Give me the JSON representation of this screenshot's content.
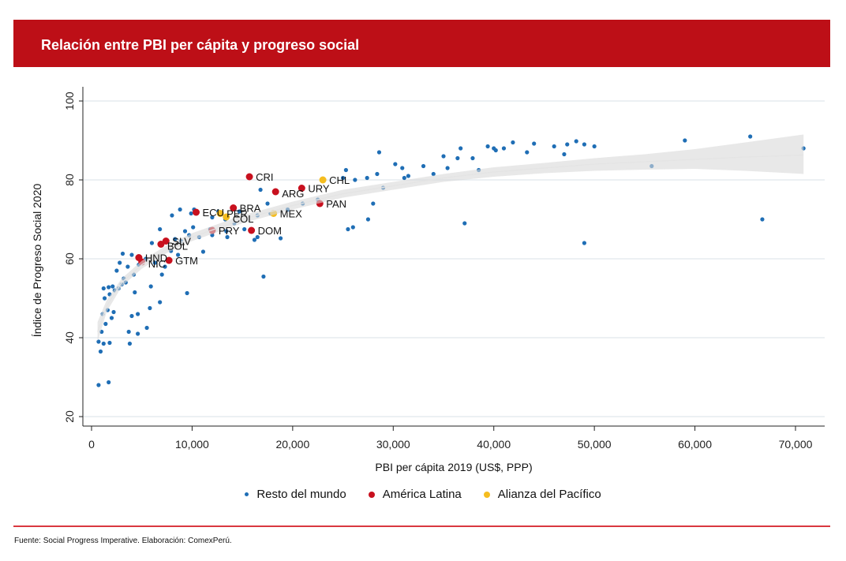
{
  "header": {
    "title": "Relación entre PBI per cápita y progreso social"
  },
  "footer": {
    "source": "Fuente: Social Progress Imperative. Elaboración: ComexPerú."
  },
  "colors": {
    "banner": "#bd0f17",
    "resto": "#1f6eb5",
    "latam": "#c8101e",
    "alianza": "#f5bd1f",
    "band": "#dcdcdc",
    "footer_line": "#d9383f"
  },
  "legend": [
    {
      "label": "Resto del mundo",
      "color": "#1f6eb5"
    },
    {
      "label": "América Latina",
      "color": "#c8101e"
    },
    {
      "label": "Alianza del Pacífico",
      "color": "#f5bd1f"
    }
  ],
  "chart_data": {
    "type": "scatter",
    "title": "Relación entre PBI per cápita y progreso social",
    "xlabel": "PBI per cápita 2019 (US$, PPP)",
    "ylabel": "Índice de Progreso Social 2020",
    "xlim": [
      -500,
      73000
    ],
    "ylim": [
      18,
      102
    ],
    "xticks": [
      0,
      10000,
      20000,
      30000,
      40000,
      50000,
      60000,
      70000
    ],
    "xtick_labels": [
      "0",
      "10,000",
      "20,000",
      "30,000",
      "40,000",
      "50,000",
      "60,000",
      "70,000"
    ],
    "yticks": [
      20,
      40,
      60,
      80,
      100
    ],
    "ytick_labels": [
      "20",
      "40",
      "60",
      "80",
      "100"
    ],
    "grid": true,
    "legend_position": "bottom",
    "fit": {
      "type": "log-fit with confidence band",
      "x": [
        600,
        1500,
        3000,
        5000,
        7500,
        10000,
        15000,
        20000,
        25000,
        30000,
        35000,
        40000,
        45000,
        50000,
        55000,
        60000,
        65000,
        70800
      ],
      "y": [
        41.5,
        48,
        54,
        58.5,
        62.5,
        65.5,
        70,
        73.5,
        76.5,
        78.5,
        80.5,
        82,
        83,
        84,
        84.6,
        85.2,
        85.8,
        86.3
      ],
      "lo": [
        39,
        46.5,
        53,
        57.5,
        61.5,
        64.5,
        69,
        72.5,
        75.5,
        77.5,
        79.5,
        80.8,
        81.7,
        82.3,
        82.6,
        82.8,
        82.3,
        81.5
      ],
      "hi": [
        44,
        49.5,
        55,
        59.5,
        63.5,
        66.5,
        71,
        74.5,
        77.5,
        79.5,
        81.5,
        83.2,
        84.3,
        85.5,
        86.5,
        87.8,
        89.5,
        91.5
      ]
    },
    "series": [
      {
        "name": "Resto del mundo",
        "color": "#1f6eb5",
        "points": [
          [
            700,
            28
          ],
          [
            1700,
            28.7
          ],
          [
            900,
            36.5
          ],
          [
            700,
            39
          ],
          [
            1200,
            38.5
          ],
          [
            1800,
            38.7
          ],
          [
            3800,
            38.5
          ],
          [
            3700,
            41.5
          ],
          [
            4600,
            41
          ],
          [
            5500,
            42.5
          ],
          [
            1000,
            41.5
          ],
          [
            1400,
            43.5
          ],
          [
            2000,
            45
          ],
          [
            1100,
            46
          ],
          [
            1600,
            47
          ],
          [
            2200,
            46.5
          ],
          [
            4000,
            45.5
          ],
          [
            4600,
            46
          ],
          [
            5800,
            47.5
          ],
          [
            6800,
            49
          ],
          [
            1300,
            50
          ],
          [
            1800,
            51
          ],
          [
            2300,
            52
          ],
          [
            2700,
            52.5
          ],
          [
            3000,
            53.5
          ],
          [
            3400,
            54
          ],
          [
            1200,
            52.5
          ],
          [
            1700,
            52.8
          ],
          [
            2100,
            53
          ],
          [
            4300,
            51.5
          ],
          [
            5900,
            53
          ],
          [
            9500,
            51.3
          ],
          [
            3200,
            55
          ],
          [
            2500,
            57
          ],
          [
            3600,
            58
          ],
          [
            4200,
            56
          ],
          [
            7000,
            56
          ],
          [
            7300,
            58
          ],
          [
            2800,
            59
          ],
          [
            3100,
            61.3
          ],
          [
            4000,
            61
          ],
          [
            5400,
            60
          ],
          [
            6300,
            59
          ],
          [
            4700,
            58.5
          ],
          [
            7900,
            62
          ],
          [
            8600,
            61
          ],
          [
            11100,
            61.8
          ],
          [
            6000,
            64
          ],
          [
            8300,
            65
          ],
          [
            8900,
            64.5
          ],
          [
            9700,
            66
          ],
          [
            10700,
            65.5
          ],
          [
            12000,
            66
          ],
          [
            13500,
            65.5
          ],
          [
            16500,
            65.5
          ],
          [
            16200,
            64.8
          ],
          [
            18800,
            65.2
          ],
          [
            11800,
            67.5
          ],
          [
            13400,
            67
          ],
          [
            15200,
            67.5
          ],
          [
            6800,
            67.5
          ],
          [
            9300,
            67
          ],
          [
            10100,
            68
          ],
          [
            14200,
            69
          ],
          [
            13300,
            70
          ],
          [
            12000,
            70.5
          ],
          [
            8000,
            71
          ],
          [
            8800,
            72.5
          ],
          [
            9900,
            71.5
          ],
          [
            10200,
            72.5
          ],
          [
            12600,
            72
          ],
          [
            14700,
            72
          ],
          [
            16500,
            71
          ],
          [
            17800,
            71.5
          ],
          [
            17500,
            74
          ],
          [
            16800,
            77.5
          ],
          [
            26200,
            80
          ],
          [
            27400,
            80.5
          ],
          [
            28400,
            81.5
          ],
          [
            30900,
            83
          ],
          [
            31100,
            80.5
          ],
          [
            33000,
            83.5
          ],
          [
            34000,
            81.5
          ],
          [
            35000,
            86
          ],
          [
            35400,
            83
          ],
          [
            36400,
            85.5
          ],
          [
            36700,
            88
          ],
          [
            37900,
            85.5
          ],
          [
            40000,
            88
          ],
          [
            39400,
            88.5
          ],
          [
            41000,
            88
          ],
          [
            40200,
            87.5
          ],
          [
            41900,
            89.5
          ],
          [
            44000,
            89.2
          ],
          [
            46000,
            88.5
          ],
          [
            47300,
            89
          ],
          [
            48200,
            89.8
          ],
          [
            49000,
            89
          ],
          [
            50000,
            88.5
          ],
          [
            43300,
            87
          ],
          [
            25300,
            82.5
          ],
          [
            28600,
            87
          ],
          [
            25000,
            80.5
          ],
          [
            30200,
            84
          ],
          [
            37100,
            69
          ],
          [
            28000,
            74
          ],
          [
            26000,
            68
          ],
          [
            27500,
            70
          ],
          [
            25500,
            67.5
          ],
          [
            49000,
            64
          ],
          [
            66700,
            70
          ],
          [
            17100,
            55.5
          ],
          [
            55700,
            83.5
          ],
          [
            59000,
            90
          ],
          [
            65500,
            91
          ],
          [
            70800,
            88
          ],
          [
            47000,
            86.5
          ],
          [
            38500,
            82.5
          ],
          [
            31500,
            81
          ],
          [
            29000,
            78
          ],
          [
            22500,
            75
          ],
          [
            21000,
            74
          ],
          [
            19500,
            72.5
          ]
        ]
      },
      {
        "name": "América Latina",
        "color": "#c8101e",
        "points": [
          {
            "code": "CRI",
            "x": 15700,
            "y": 80.8
          },
          {
            "code": "URY",
            "x": 20900,
            "y": 77.9
          },
          {
            "code": "ARG",
            "x": 18300,
            "y": 77
          },
          {
            "code": "PAN",
            "x": 22700,
            "y": 74
          },
          {
            "code": "BRA",
            "x": 14100,
            "y": 72.9
          },
          {
            "code": "ECU",
            "x": 10400,
            "y": 71.8
          },
          {
            "code": "PRY",
            "x": 12000,
            "y": 67.2
          },
          {
            "code": "DOM",
            "x": 15900,
            "y": 67.2
          },
          {
            "code": "SLV",
            "x": 7400,
            "y": 64.5
          },
          {
            "code": "BOL",
            "x": 6900,
            "y": 63.7
          },
          {
            "code": "HND",
            "x": 4700,
            "y": 60.3
          },
          {
            "code": "NIC",
            "x": 5000,
            "y": 59.2
          },
          {
            "code": "GTM",
            "x": 7700,
            "y": 59.6
          }
        ]
      },
      {
        "name": "Alianza del Pacífico",
        "color": "#f5bd1f",
        "points": [
          {
            "code": "CHL",
            "x": 23000,
            "y": 80
          },
          {
            "code": "PER",
            "x": 12800,
            "y": 71.5
          },
          {
            "code": "COL",
            "x": 13400,
            "y": 70.6
          },
          {
            "code": "MEX",
            "x": 18100,
            "y": 71.5
          }
        ]
      }
    ]
  }
}
